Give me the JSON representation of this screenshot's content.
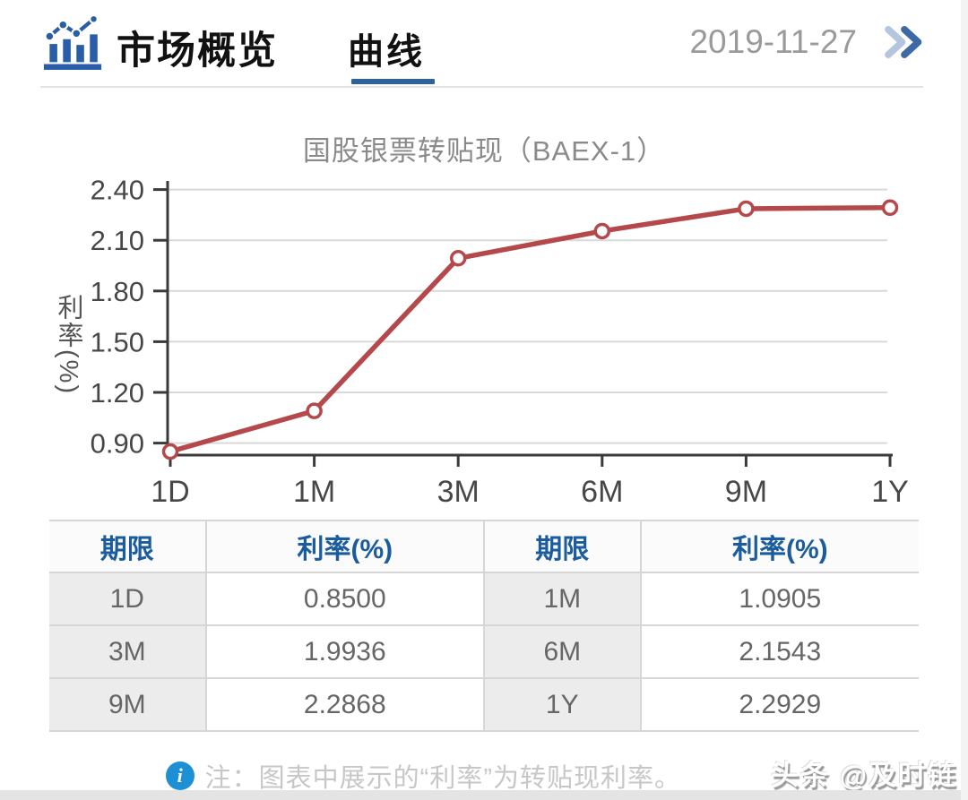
{
  "header": {
    "title": "市场概览",
    "tab": "曲线",
    "date": "2019-11-27",
    "icons": {
      "app_icon": "bar-line-chart-icon",
      "more_icon": "double-chevron-right-icon"
    }
  },
  "chart_data": {
    "type": "line",
    "title": "国股银票转贴现（BAEX-1）",
    "xlabel": "",
    "ylabel": "利率(%)",
    "categories": [
      "1D",
      "1M",
      "3M",
      "6M",
      "9M",
      "1Y"
    ],
    "values": [
      0.85,
      1.0905,
      1.9936,
      2.1543,
      2.2868,
      2.2929
    ],
    "ytick_labels": [
      "0.90",
      "1.20",
      "1.50",
      "1.80",
      "2.10",
      "2.40"
    ],
    "ylim": [
      0.85,
      2.4
    ],
    "grid": true,
    "legend_position": "none",
    "line_color": "#b5484b",
    "marker": "open-circle"
  },
  "table": {
    "headers": [
      "期限",
      "利率(%)",
      "期限",
      "利率(%)"
    ],
    "rows": [
      [
        "1D",
        "0.8500",
        "1M",
        "1.0905"
      ],
      [
        "3M",
        "1.9936",
        "6M",
        "2.1543"
      ],
      [
        "9M",
        "2.2868",
        "1Y",
        "2.2929"
      ]
    ]
  },
  "note": {
    "icon": "info-icon",
    "text": "注：图表中展示的“利率”为转贴现利率。"
  },
  "watermark": "头条 @及时链",
  "colors": {
    "accent_blue": "#2a5da8",
    "tab_underline": "#2f6398",
    "table_header_blue": "#1b5c9e",
    "line_red": "#b5484b",
    "date_gray": "#9a9a9a"
  }
}
